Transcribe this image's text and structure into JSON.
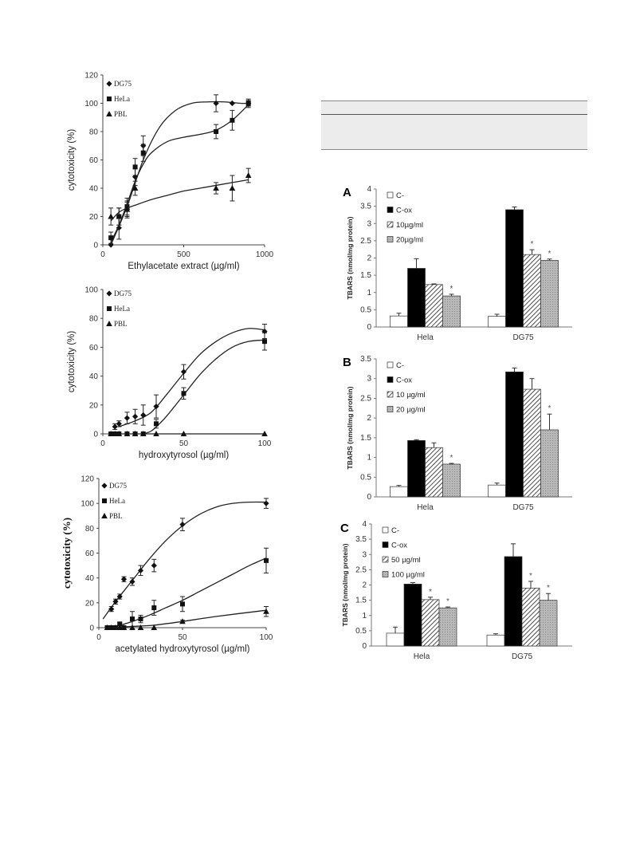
{
  "chart_data": [
    {
      "type": "scatter",
      "xlabel": "Ethylacetate extract (µg/ml)",
      "ylabel": "cytotoxicity (%)",
      "xlim": [
        0,
        1000
      ],
      "ylim": [
        0,
        120
      ],
      "xticks": [
        0,
        500,
        1000
      ],
      "yticks": [
        0,
        20,
        40,
        60,
        80,
        100,
        120
      ],
      "legend_position": "top-left",
      "series": [
        {
          "name": "DG75",
          "marker": "diamond",
          "x": [
            50,
            100,
            150,
            200,
            250,
            700,
            800,
            900
          ],
          "y": [
            0,
            12,
            25,
            48,
            70,
            100,
            100,
            100
          ],
          "err": [
            0,
            8,
            6,
            6,
            7,
            6,
            0,
            2
          ],
          "curve_x": [
            50,
            150,
            250,
            350,
            450,
            550,
            650,
            750,
            850,
            900
          ],
          "curve_y": [
            0,
            27,
            60,
            83,
            95,
            100,
            101,
            101,
            100,
            100
          ]
        },
        {
          "name": "HeLa",
          "marker": "square",
          "x": [
            50,
            100,
            150,
            200,
            250,
            700,
            800,
            900
          ],
          "y": [
            5,
            20,
            27,
            55,
            65,
            80,
            88,
            100
          ],
          "err": [
            4,
            6,
            6,
            6,
            6,
            5,
            7,
            3
          ],
          "curve_x": [
            50,
            100,
            150,
            200,
            250,
            300,
            400,
            500,
            600,
            700,
            800,
            900
          ],
          "curve_y": [
            2,
            14,
            29,
            45,
            57,
            65,
            73,
            76,
            78,
            81,
            88,
            99
          ]
        },
        {
          "name": "PBL",
          "marker": "triangle",
          "x": [
            50,
            100,
            150,
            200,
            700,
            800,
            900
          ],
          "y": [
            20,
            20,
            25,
            40,
            40,
            40,
            49
          ],
          "err": [
            6,
            6,
            5,
            5,
            4,
            9,
            5
          ],
          "curve_x": [
            50,
            100,
            150,
            200,
            300,
            400,
            500,
            600,
            700,
            800,
            900
          ],
          "curve_y": [
            17,
            23,
            26,
            28,
            32,
            35,
            38,
            40,
            42,
            44,
            46
          ]
        }
      ]
    },
    {
      "type": "scatter",
      "xlabel": "hydroxytyrosol (µg/ml)",
      "ylabel": "cytotoxicity (%)",
      "xlim": [
        0,
        100
      ],
      "ylim": [
        0,
        100
      ],
      "xticks": [
        0,
        50,
        100
      ],
      "yticks": [
        0,
        20,
        40,
        60,
        80,
        100
      ],
      "legend_position": "top-left",
      "series": [
        {
          "name": "DG75",
          "marker": "diamond",
          "x": [
            7.5,
            10,
            15,
            20,
            25,
            33,
            50,
            100
          ],
          "y": [
            5,
            7,
            11,
            12,
            13,
            19,
            43,
            71
          ],
          "err": [
            2,
            2,
            4,
            5,
            7,
            8,
            5,
            5
          ],
          "curve_x": [
            10,
            20,
            30,
            40,
            50,
            60,
            70,
            80,
            90,
            100
          ],
          "curve_y": [
            5,
            9,
            15,
            28,
            42,
            55,
            64,
            70,
            73,
            72
          ]
        },
        {
          "name": "HeLa",
          "marker": "square",
          "x": [
            5,
            7.5,
            10,
            15,
            20,
            25,
            33,
            50,
            100
          ],
          "y": [
            0,
            0,
            0,
            0,
            0,
            0,
            7,
            28,
            64
          ],
          "err": [
            0,
            0,
            0,
            0,
            0,
            0,
            3,
            4,
            6
          ],
          "curve_x": [
            25,
            30,
            35,
            40,
            50,
            60,
            70,
            80,
            90,
            100
          ],
          "curve_y": [
            0,
            2,
            7,
            13,
            27,
            41,
            52,
            60,
            64,
            65
          ]
        },
        {
          "name": "PBL",
          "marker": "triangle",
          "x": [
            5,
            7.5,
            10,
            15,
            20,
            25,
            33,
            50,
            100
          ],
          "y": [
            0,
            0,
            0,
            0,
            0,
            0,
            0,
            0,
            0
          ],
          "err": [
            0,
            0,
            0,
            0,
            0,
            0,
            0,
            0,
            0
          ],
          "curve_x": [
            5,
            100
          ],
          "curve_y": [
            0,
            0
          ]
        }
      ]
    },
    {
      "type": "scatter",
      "xlabel": "acetylated hydroxytyrosol (µg/ml)",
      "ylabel": "cytotoxicity (%)",
      "xlim": [
        0,
        100
      ],
      "ylim": [
        0,
        120
      ],
      "xticks": [
        0,
        50,
        100
      ],
      "yticks": [
        0,
        20,
        40,
        60,
        80,
        100,
        120
      ],
      "legend_position": "top-left",
      "series": [
        {
          "name": "DG75",
          "marker": "diamond",
          "x": [
            7.5,
            10,
            12.5,
            15,
            20,
            25,
            33,
            50,
            100
          ],
          "y": [
            15,
            21,
            25,
            39,
            37,
            46,
            50,
            83,
            100
          ],
          "err": [
            2,
            2,
            2,
            2,
            3,
            4,
            5,
            5,
            4
          ],
          "curve_x": [
            2.5,
            10,
            20,
            30,
            40,
            50,
            60,
            70,
            80,
            90,
            100
          ],
          "curve_y": [
            7,
            21,
            38,
            55,
            70,
            82,
            91,
            97,
            100,
            101,
            101
          ]
        },
        {
          "name": "HeLa",
          "marker": "square",
          "x": [
            5,
            7.5,
            10,
            12.5,
            15,
            20,
            25,
            33,
            50,
            100
          ],
          "y": [
            0,
            0,
            0,
            3,
            0,
            7,
            7,
            16,
            19,
            54
          ],
          "err": [
            0,
            0,
            0,
            1,
            0,
            6,
            3,
            6,
            6,
            10
          ],
          "curve_x": [
            5,
            10,
            20,
            30,
            40,
            50,
            60,
            70,
            80,
            90,
            100
          ],
          "curve_y": [
            0,
            1,
            5,
            10,
            16,
            22,
            29,
            36,
            43,
            50,
            56
          ]
        },
        {
          "name": "PBL",
          "marker": "triangle",
          "x": [
            5,
            7.5,
            10,
            12.5,
            15,
            20,
            25,
            33,
            50,
            100
          ],
          "y": [
            0,
            0,
            0,
            0,
            0,
            0,
            0,
            0,
            5,
            13
          ],
          "err": [
            0,
            0,
            0,
            0,
            0,
            0,
            0,
            0,
            1,
            4
          ],
          "curve_x": [
            5,
            20,
            33,
            50,
            70,
            100
          ],
          "curve_y": [
            0,
            1,
            2,
            5,
            9,
            14
          ]
        }
      ]
    },
    {
      "type": "bar",
      "panel": "A",
      "ylabel": "TBARS (nmol/mg protein)",
      "categories": [
        "Hela",
        "DG75"
      ],
      "ylim": [
        0,
        4
      ],
      "yticks": [
        "0",
        "0.5",
        "1",
        "1.5",
        "2",
        "2.5",
        "3",
        "3.5",
        "4"
      ],
      "legend_position": "top-left",
      "series": [
        {
          "name": "C-",
          "fill": "white",
          "values": [
            0.32,
            0.31
          ],
          "err": [
            0.08,
            0.06
          ],
          "stars": [
            "",
            ""
          ]
        },
        {
          "name": "C-ox",
          "fill": "black",
          "values": [
            1.7,
            3.4
          ],
          "err": [
            0.28,
            0.08
          ],
          "stars": [
            "",
            ""
          ]
        },
        {
          "name": "10µg/ml",
          "fill": "hatch",
          "values": [
            1.23,
            2.1
          ],
          "err": [
            0.02,
            0.14
          ],
          "stars": [
            "",
            "*"
          ]
        },
        {
          "name": "20µg/ml",
          "fill": "gray",
          "values": [
            0.9,
            1.93
          ],
          "err": [
            0.05,
            0.04
          ],
          "stars": [
            "*",
            "*"
          ]
        }
      ]
    },
    {
      "type": "bar",
      "panel": "B",
      "ylabel": "TBARS (nmol/mg protein)",
      "categories": [
        "Hela",
        "DG75"
      ],
      "ylim": [
        0,
        3.5
      ],
      "yticks": [
        "0",
        "0.5",
        "1",
        "1.5",
        "2",
        "2.5",
        "3",
        "3.5"
      ],
      "legend_position": "top-left",
      "series": [
        {
          "name": "C-",
          "fill": "white",
          "values": [
            0.26,
            0.3
          ],
          "err": [
            0.03,
            0.05
          ],
          "stars": [
            "",
            ""
          ]
        },
        {
          "name": "C-ox",
          "fill": "black",
          "values": [
            1.43,
            3.17
          ],
          "err": [
            0.02,
            0.1
          ],
          "stars": [
            "",
            ""
          ]
        },
        {
          "name": "10 µg/ml",
          "fill": "hatch",
          "values": [
            1.25,
            2.73
          ],
          "err": [
            0.12,
            0.27
          ],
          "stars": [
            "",
            ""
          ]
        },
        {
          "name": "20 µg/ml",
          "fill": "gray",
          "values": [
            0.83,
            1.7
          ],
          "err": [
            0.02,
            0.4
          ],
          "stars": [
            "*",
            "*"
          ]
        }
      ]
    },
    {
      "type": "bar",
      "panel": "C",
      "ylabel": "TBARS (nmol/mg protein)",
      "categories": [
        "Hela",
        "DG75"
      ],
      "ylim": [
        0,
        4
      ],
      "yticks": [
        "0",
        "0.5",
        "1",
        "1.5",
        "2",
        "2.5",
        "3",
        "3.5",
        "4"
      ],
      "legend_position": "top-left",
      "series": [
        {
          "name": "C-",
          "fill": "white",
          "values": [
            0.42,
            0.36
          ],
          "err": [
            0.2,
            0.04
          ],
          "stars": [
            "",
            ""
          ]
        },
        {
          "name": "C-ox",
          "fill": "black",
          "values": [
            2.03,
            2.93
          ],
          "err": [
            0.05,
            0.42
          ],
          "stars": [
            "",
            ""
          ]
        },
        {
          "name": "50 µg/ml",
          "fill": "hatch",
          "values": [
            1.52,
            1.9
          ],
          "err": [
            0.08,
            0.22
          ],
          "stars": [
            "*",
            "*"
          ]
        },
        {
          "name": "100 µg/ml",
          "fill": "gray",
          "values": [
            1.25,
            1.5
          ],
          "err": [
            0.03,
            0.22
          ],
          "stars": [
            "*",
            "*"
          ]
        }
      ]
    }
  ]
}
